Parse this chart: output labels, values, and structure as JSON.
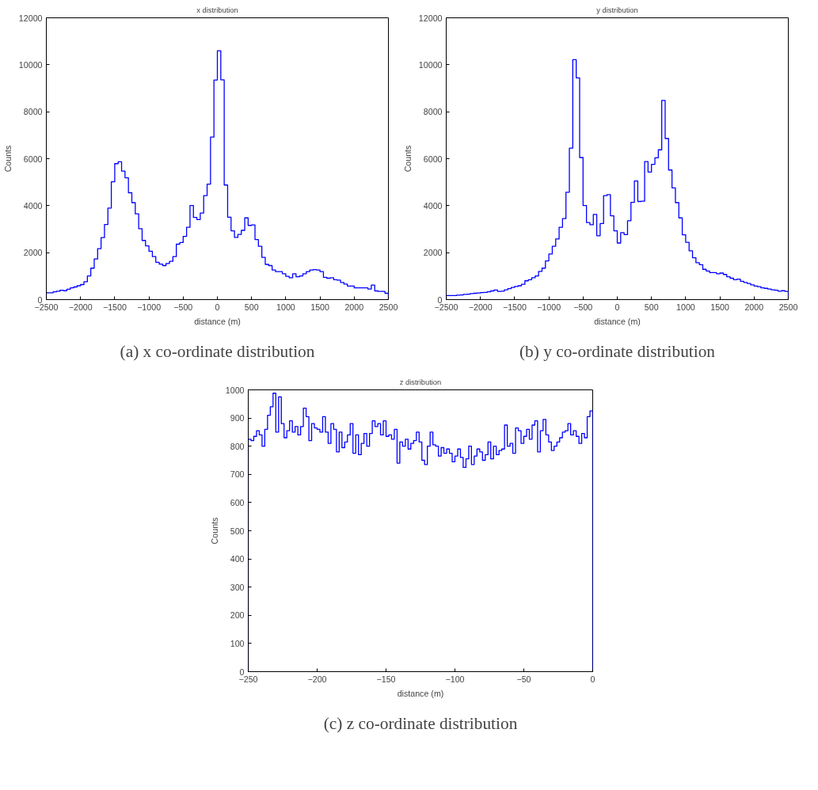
{
  "chart_data": [
    {
      "type": "histogram",
      "title": "x distribution",
      "xlabel": "distance (m)",
      "ylabel": "Counts",
      "color": "#0000ff",
      "grid": false,
      "xlim": [
        -2500,
        2500
      ],
      "ylim": [
        0,
        12000
      ],
      "xticks": [
        -2500,
        -2000,
        -1500,
        -1000,
        -500,
        0,
        500,
        1000,
        1500,
        2000,
        2500
      ],
      "yticks": [
        0,
        2000,
        4000,
        6000,
        8000,
        10000,
        12000
      ],
      "bins": [
        -2500,
        -2450,
        -2400,
        -2350,
        -2300,
        -2250,
        -2200,
        -2150,
        -2100,
        -2050,
        -2000,
        -1950,
        -1900,
        -1850,
        -1800,
        -1750,
        -1700,
        -1650,
        -1600,
        -1550,
        -1500,
        -1450,
        -1400,
        -1350,
        -1300,
        -1250,
        -1200,
        -1150,
        -1100,
        -1050,
        -1000,
        -950,
        -900,
        -850,
        -800,
        -750,
        -700,
        -650,
        -600,
        -550,
        -500,
        -450,
        -400,
        -350,
        -300,
        -250,
        -200,
        -150,
        -100,
        -50,
        0,
        50,
        100,
        150,
        200,
        250,
        300,
        350,
        400,
        450,
        500,
        550,
        600,
        650,
        700,
        750,
        800,
        850,
        900,
        950,
        1000,
        1050,
        1100,
        1150,
        1200,
        1250,
        1300,
        1350,
        1400,
        1450,
        1500,
        1550,
        1600,
        1650,
        1700,
        1750,
        1800,
        1850,
        1900,
        1950,
        2000,
        2050,
        2100,
        2150,
        2200,
        2250,
        2300,
        2350,
        2400,
        2450,
        2500
      ],
      "values": [
        290,
        290,
        330,
        360,
        400,
        380,
        440,
        500,
        540,
        590,
        640,
        760,
        1010,
        1340,
        1730,
        2170,
        2640,
        3200,
        3900,
        5020,
        5790,
        5870,
        5470,
        5190,
        4550,
        4130,
        3650,
        3020,
        2520,
        2290,
        2060,
        1830,
        1590,
        1510,
        1450,
        1540,
        1630,
        1830,
        2360,
        2430,
        2690,
        3080,
        4010,
        3500,
        3410,
        3690,
        4430,
        4920,
        6920,
        9350,
        10600,
        9360,
        4880,
        3510,
        2930,
        2650,
        2780,
        2950,
        3480,
        3160,
        3180,
        2560,
        2270,
        1800,
        1500,
        1450,
        1260,
        1190,
        1190,
        1100,
        990,
        930,
        1100,
        970,
        1010,
        1100,
        1190,
        1260,
        1280,
        1260,
        1190,
        950,
        910,
        930,
        850,
        830,
        730,
        660,
        580,
        580,
        500,
        500,
        500,
        500,
        450,
        620,
        370,
        350,
        350,
        270
      ],
      "annotations": [
        "(a) x co-ordinate distribution"
      ]
    },
    {
      "type": "histogram",
      "title": "y distribution",
      "xlabel": "distance (m)",
      "ylabel": "Counts",
      "color": "#0000ff",
      "grid": false,
      "xlim": [
        -2500,
        2500
      ],
      "ylim": [
        0,
        12000
      ],
      "xticks": [
        -2500,
        -2000,
        -1500,
        -1000,
        -500,
        0,
        500,
        1000,
        1500,
        2000,
        2500
      ],
      "yticks": [
        0,
        2000,
        4000,
        6000,
        8000,
        10000,
        12000
      ],
      "bins": [
        -2500,
        -2450,
        -2400,
        -2350,
        -2300,
        -2250,
        -2200,
        -2150,
        -2100,
        -2050,
        -2000,
        -1950,
        -1900,
        -1850,
        -1800,
        -1750,
        -1700,
        -1650,
        -1600,
        -1550,
        -1500,
        -1450,
        -1400,
        -1350,
        -1300,
        -1250,
        -1200,
        -1150,
        -1100,
        -1050,
        -1000,
        -950,
        -900,
        -850,
        -800,
        -750,
        -700,
        -650,
        -600,
        -550,
        -500,
        -450,
        -400,
        -350,
        -300,
        -250,
        -200,
        -150,
        -100,
        -50,
        0,
        50,
        100,
        150,
        200,
        250,
        300,
        350,
        400,
        450,
        500,
        550,
        600,
        650,
        700,
        750,
        800,
        850,
        900,
        950,
        1000,
        1050,
        1100,
        1150,
        1200,
        1250,
        1300,
        1350,
        1400,
        1450,
        1500,
        1550,
        1600,
        1650,
        1700,
        1750,
        1800,
        1850,
        1900,
        1950,
        2000,
        2050,
        2100,
        2150,
        2200,
        2250,
        2300,
        2350,
        2400,
        2450,
        2500
      ],
      "values": [
        170,
        170,
        170,
        190,
        200,
        220,
        230,
        260,
        270,
        280,
        300,
        310,
        330,
        370,
        410,
        350,
        360,
        420,
        470,
        520,
        560,
        590,
        650,
        800,
        850,
        930,
        1010,
        1200,
        1340,
        1650,
        1940,
        2270,
        2580,
        3080,
        3450,
        4570,
        6450,
        10220,
        9440,
        6050,
        4010,
        3280,
        3190,
        3630,
        2720,
        3240,
        4430,
        4470,
        3570,
        2930,
        2410,
        2850,
        2770,
        3360,
        4140,
        5050,
        4180,
        4190,
        5880,
        5430,
        5760,
        6040,
        6380,
        8480,
        6860,
        5520,
        4760,
        4130,
        3480,
        2760,
        2440,
        2080,
        1780,
        1570,
        1490,
        1290,
        1220,
        1150,
        1150,
        1100,
        1130,
        1070,
        970,
        910,
        850,
        870,
        780,
        730,
        690,
        630,
        580,
        550,
        500,
        480,
        450,
        420,
        400,
        360,
        380,
        350
      ],
      "annotations": [
        "(b) y co-ordinate distribution"
      ]
    },
    {
      "type": "histogram",
      "title": "z distribution",
      "xlabel": "distance (m)",
      "ylabel": "Counts",
      "color": "#0000ff",
      "grid": false,
      "xlim": [
        -250,
        0
      ],
      "ylim": [
        0,
        1000
      ],
      "xticks": [
        -250,
        -200,
        -150,
        -100,
        -50,
        0
      ],
      "yticks": [
        0,
        100,
        200,
        300,
        400,
        500,
        600,
        700,
        800,
        900,
        1000
      ],
      "bins": [
        -250,
        -248,
        -246,
        -244,
        -242,
        -240,
        -238,
        -236,
        -234,
        -232,
        -230,
        -228,
        -226,
        -224,
        -222,
        -220,
        -218,
        -216,
        -214,
        -212,
        -210,
        -208,
        -206,
        -204,
        -202,
        -200,
        -198,
        -196,
        -194,
        -192,
        -190,
        -188,
        -186,
        -184,
        -182,
        -180,
        -178,
        -176,
        -174,
        -172,
        -170,
        -168,
        -166,
        -164,
        -162,
        -160,
        -158,
        -156,
        -154,
        -152,
        -150,
        -148,
        -146,
        -144,
        -142,
        -140,
        -138,
        -136,
        -134,
        -132,
        -130,
        -128,
        -126,
        -124,
        -122,
        -120,
        -118,
        -116,
        -114,
        -112,
        -110,
        -108,
        -106,
        -104,
        -102,
        -100,
        -98,
        -96,
        -94,
        -92,
        -90,
        -88,
        -86,
        -84,
        -82,
        -80,
        -78,
        -76,
        -74,
        -72,
        -70,
        -68,
        -66,
        -64,
        -62,
        -60,
        -58,
        -56,
        -54,
        -52,
        -50,
        -48,
        -46,
        -44,
        -42,
        -40,
        -38,
        -36,
        -34,
        -32,
        -30,
        -28,
        -26,
        -24,
        -22,
        -20,
        -18,
        -16,
        -14,
        -12,
        -10,
        -8,
        -6,
        -4,
        -2,
        0
      ],
      "values": [
        825,
        820,
        835,
        855,
        840,
        800,
        860,
        910,
        940,
        988,
        850,
        975,
        880,
        830,
        855,
        890,
        850,
        870,
        840,
        870,
        935,
        905,
        820,
        880,
        865,
        860,
        850,
        905,
        850,
        810,
        880,
        860,
        780,
        850,
        795,
        815,
        840,
        880,
        775,
        840,
        770,
        810,
        845,
        800,
        845,
        890,
        870,
        880,
        840,
        890,
        835,
        840,
        825,
        860,
        740,
        815,
        800,
        825,
        790,
        810,
        820,
        850,
        815,
        750,
        735,
        800,
        850,
        805,
        800,
        765,
        795,
        775,
        790,
        775,
        745,
        765,
        790,
        760,
        725,
        755,
        800,
        735,
        765,
        790,
        780,
        750,
        770,
        815,
        755,
        800,
        770,
        785,
        790,
        875,
        800,
        810,
        775,
        865,
        855,
        810,
        835,
        860,
        825,
        875,
        890,
        780,
        855,
        895,
        840,
        815,
        785,
        800,
        815,
        830,
        850,
        855,
        880,
        840,
        855,
        835,
        810,
        845,
        830,
        905,
        925
      ],
      "annotations": [
        "(c) z co-ordinate distribution"
      ]
    }
  ]
}
